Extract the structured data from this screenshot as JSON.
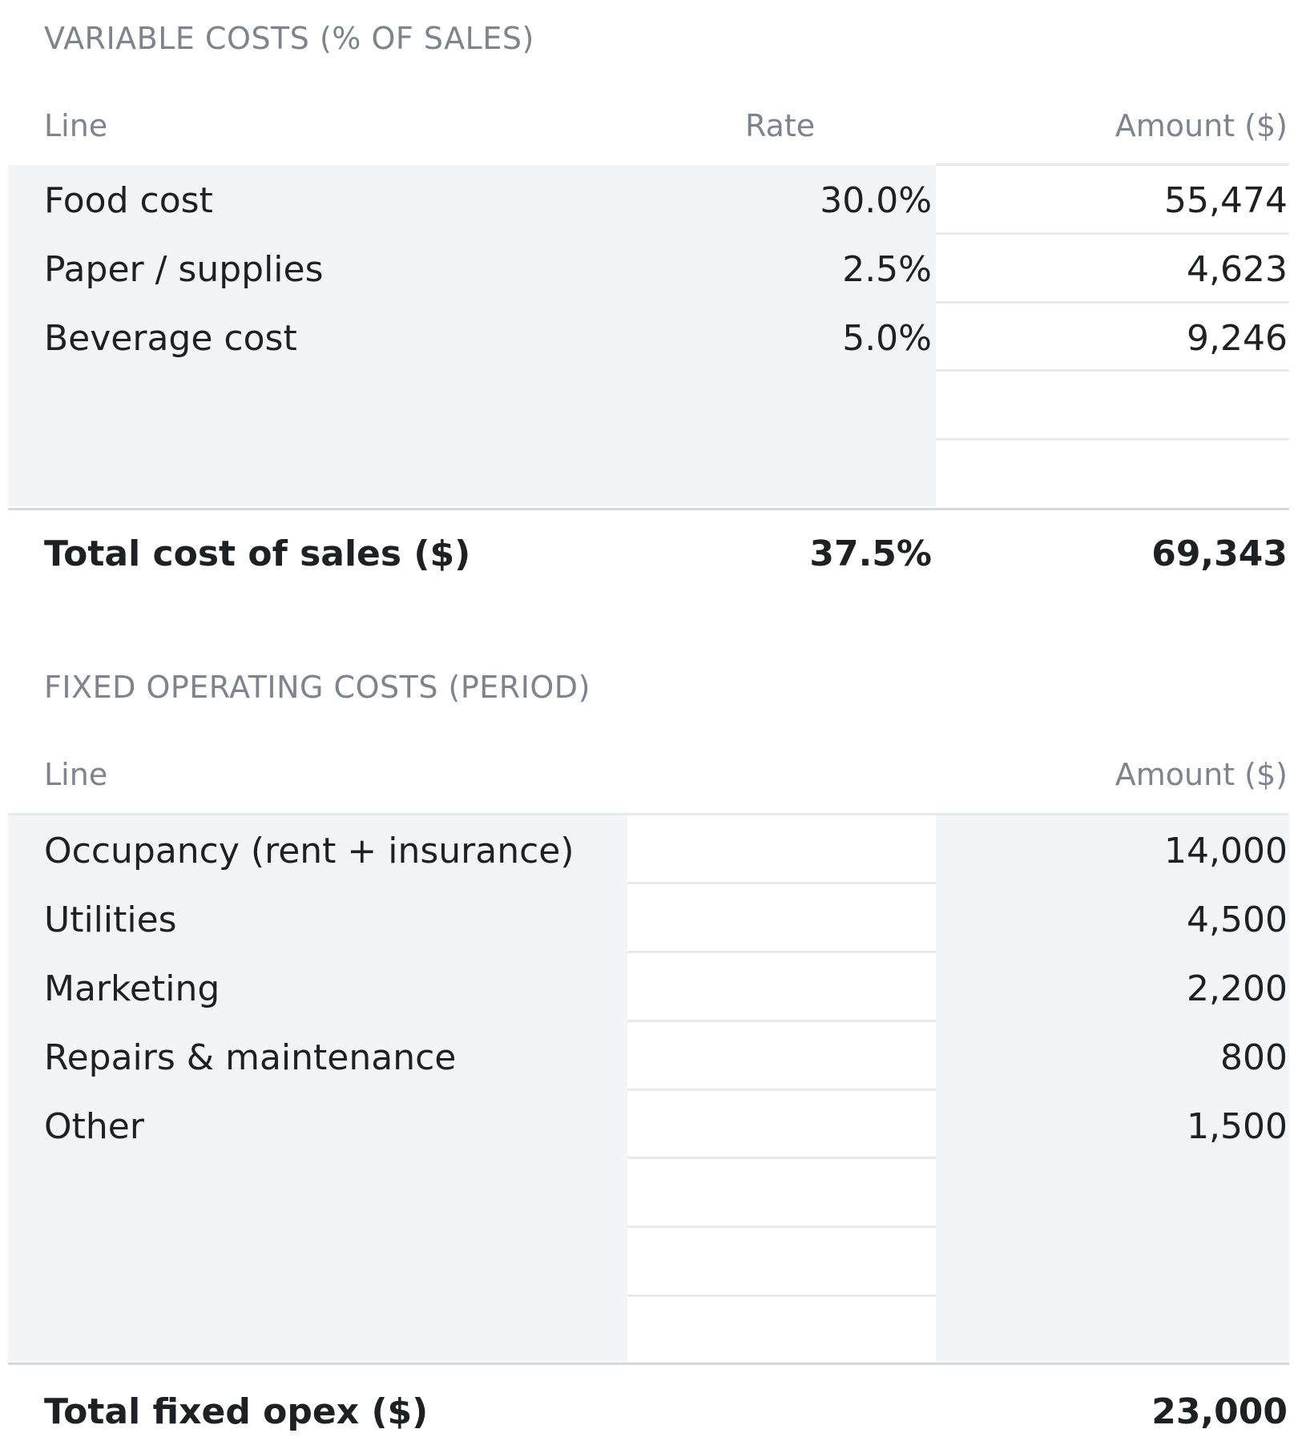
{
  "variable_costs": {
    "section_title": "VARIABLE COSTS (% OF SALES)",
    "headers": {
      "line": "Line",
      "rate": "Rate",
      "amount": "Amount ($)"
    },
    "rows": [
      {
        "line": "Food cost",
        "rate": "30.0%",
        "amount": "55,474"
      },
      {
        "line": "Paper / supplies",
        "rate": "2.5%",
        "amount": "4,623"
      },
      {
        "line": "Beverage cost",
        "rate": "5.0%",
        "amount": "9,246"
      }
    ],
    "total": {
      "label": "Total cost of sales ($)",
      "rate": "37.5%",
      "amount": "69,343"
    }
  },
  "fixed_costs": {
    "section_title": "FIXED OPERATING COSTS (PERIOD)",
    "headers": {
      "line": "Line",
      "amount": "Amount ($)"
    },
    "rows": [
      {
        "line": "Occupancy (rent + insurance)",
        "amount": "14,000"
      },
      {
        "line": "Utilities",
        "amount": "4,500"
      },
      {
        "line": "Marketing",
        "amount": "2,200"
      },
      {
        "line": "Repairs & maintenance",
        "amount": "800"
      },
      {
        "line": "Other",
        "amount": "1,500"
      }
    ],
    "total": {
      "label": "Total fixed opex ($)",
      "amount": "23,000"
    }
  },
  "colors": {
    "muted_text": "#7e838e",
    "body_text": "#1f2023",
    "panel_bg": "#f3f4f6",
    "rule": "#e8eaed"
  }
}
